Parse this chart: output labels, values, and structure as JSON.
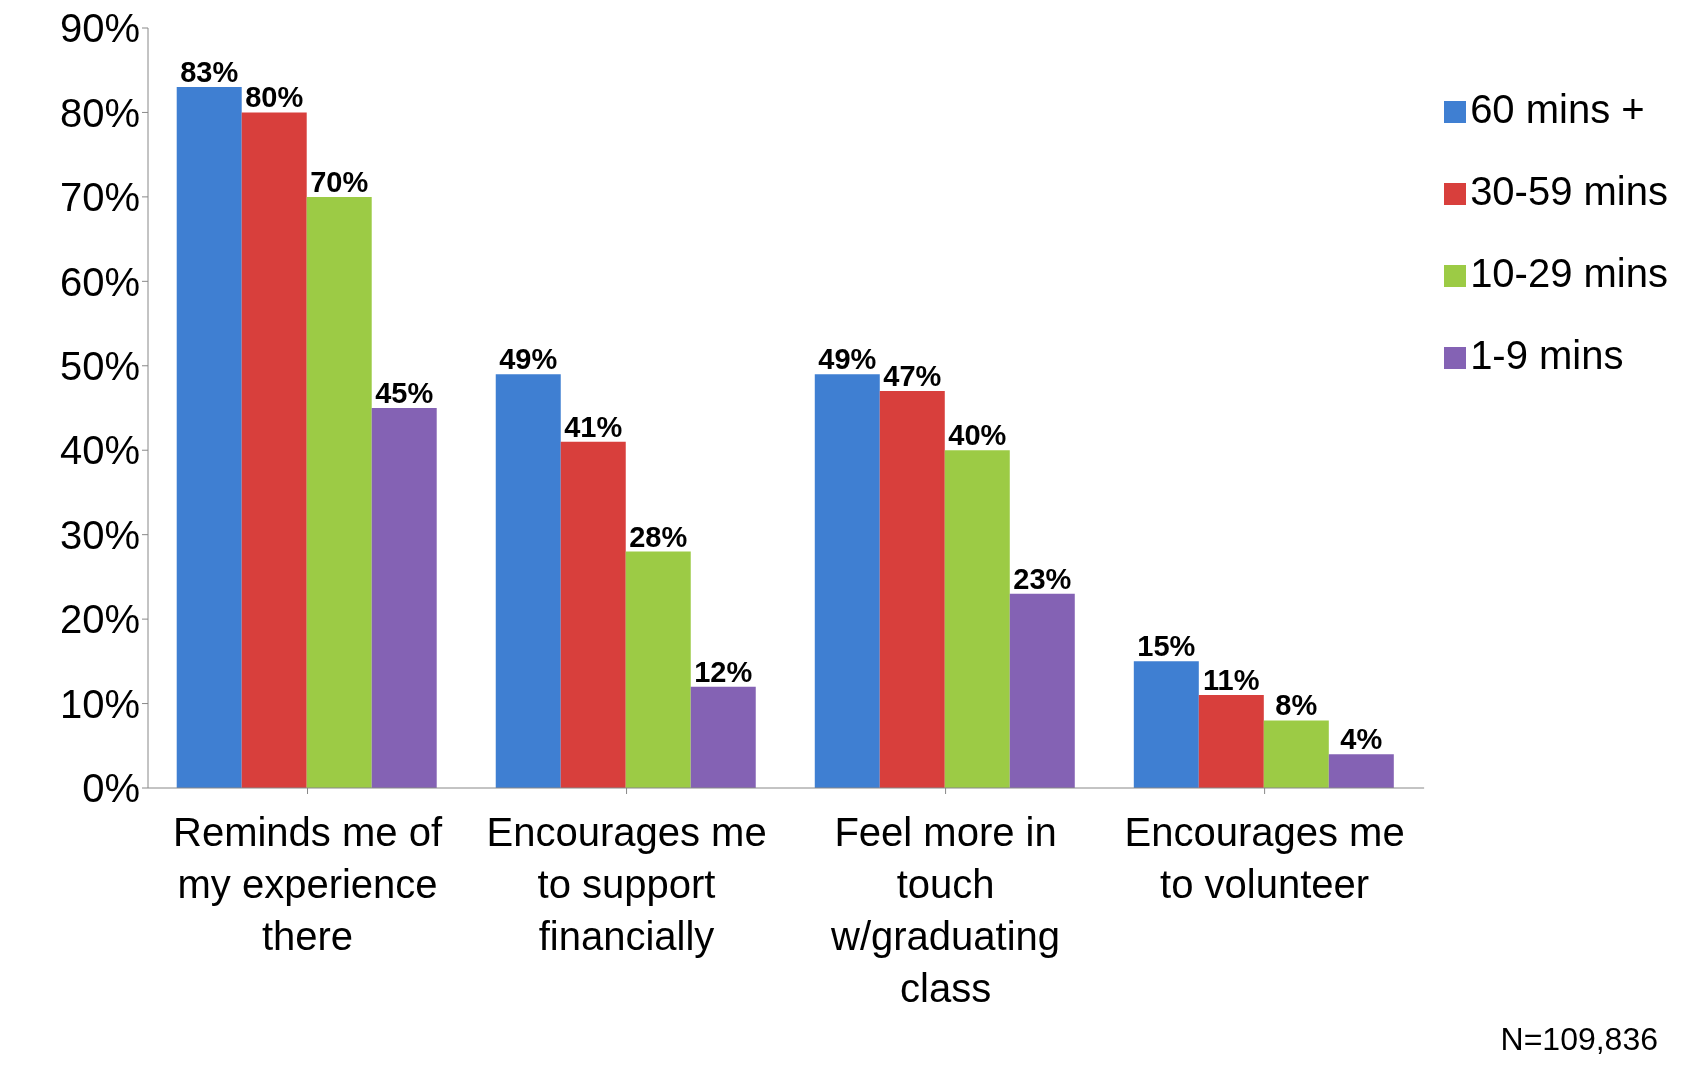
{
  "chart_data": {
    "type": "bar",
    "categories": [
      "Reminds me of my experience there",
      "Encourages me to support financially",
      "Feel more in touch w/graduating class",
      "Encourages me to volunteer"
    ],
    "series": [
      {
        "name": "60 mins +",
        "color": "#3f7fd2",
        "values": [
          83,
          49,
          49,
          15
        ],
        "value_labels": [
          "83%",
          "49%",
          "49%",
          "15%"
        ]
      },
      {
        "name": "30-59 mins",
        "color": "#d83f3c",
        "values": [
          80,
          41,
          47,
          11
        ],
        "value_labels": [
          "80%",
          "41%",
          "47%",
          "11%"
        ]
      },
      {
        "name": "10-29 mins",
        "color": "#9ccb45",
        "values": [
          70,
          28,
          40,
          8
        ],
        "value_labels": [
          "70%",
          "28%",
          "40%",
          "8%"
        ]
      },
      {
        "name": "1-9 mins",
        "color": "#8462b4",
        "values": [
          45,
          12,
          23,
          4
        ],
        "value_labels": [
          "45%",
          "12%",
          "23%",
          "4%"
        ]
      }
    ],
    "ylim": [
      0,
      90
    ],
    "yticks": [
      {
        "value": 0,
        "label": "0%"
      },
      {
        "value": 10,
        "label": "10%"
      },
      {
        "value": 20,
        "label": "20%"
      },
      {
        "value": 30,
        "label": "30%"
      },
      {
        "value": 40,
        "label": "40%"
      },
      {
        "value": 50,
        "label": "50%"
      },
      {
        "value": 60,
        "label": "60%"
      },
      {
        "value": 70,
        "label": "70%"
      },
      {
        "value": 80,
        "label": "80%"
      },
      {
        "value": 90,
        "label": "90%"
      }
    ],
    "grid": false,
    "legend": "top right",
    "annotations": [
      "N=109,836"
    ]
  }
}
